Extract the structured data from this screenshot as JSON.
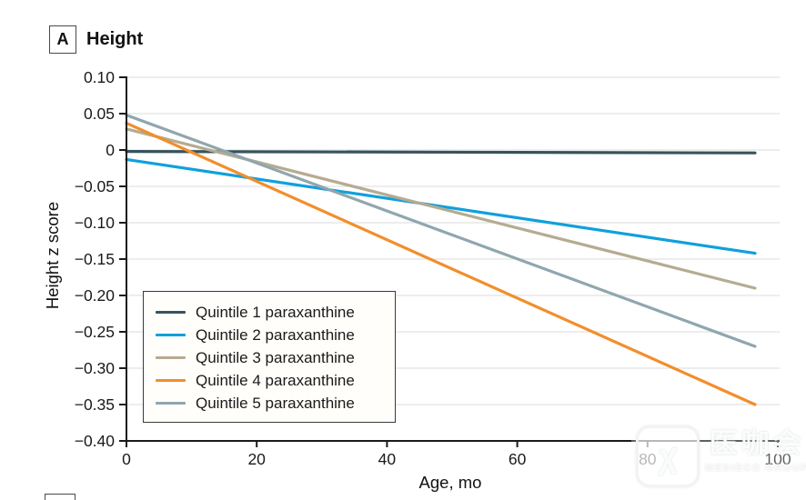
{
  "panel": {
    "label": "A",
    "title": "Height"
  },
  "watermark": {
    "logo_glyph": "χ",
    "brand_cn": "医咖会",
    "brand_en": "MEDIECO GROUP"
  },
  "chart_data": {
    "type": "line",
    "title": "Height",
    "xlabel": "Age, mo",
    "ylabel": "Height z score",
    "xlim": [
      0,
      100
    ],
    "ylim": [
      -0.4,
      0.1
    ],
    "x_ticks": [
      0,
      20,
      40,
      60,
      80,
      100
    ],
    "x_tick_labels": [
      "0",
      "20",
      "40",
      "60",
      "80",
      "100"
    ],
    "y_ticks": [
      0.1,
      0.05,
      0,
      -0.05,
      -0.1,
      -0.15,
      -0.2,
      -0.25,
      -0.3,
      -0.35,
      -0.4
    ],
    "y_tick_labels": [
      "0.10",
      "0.05",
      "0",
      "−0.05",
      "−0.10",
      "−0.15",
      "−0.20",
      "−0.25",
      "−0.30",
      "−0.35",
      "−0.40"
    ],
    "grid": "horizontal",
    "grid_color": "#e2e2e2",
    "axis_color": "#1a1a1a",
    "legend_position": "inside lower-left",
    "series": [
      {
        "name": "Quintile 1 paraxanthine",
        "color": "#36535c",
        "x": [
          0,
          96.5
        ],
        "y": [
          -0.002,
          -0.004
        ]
      },
      {
        "name": "Quintile 2 paraxanthine",
        "color": "#10a0dc",
        "x": [
          0,
          96.5
        ],
        "y": [
          -0.013,
          -0.142
        ]
      },
      {
        "name": "Quintile 3 paraxanthine",
        "color": "#b5ab91",
        "x": [
          0,
          96.5
        ],
        "y": [
          0.029,
          -0.19
        ]
      },
      {
        "name": "Quintile 4 paraxanthine",
        "color": "#f28e2b",
        "x": [
          0,
          96.5
        ],
        "y": [
          0.037,
          -0.35
        ]
      },
      {
        "name": "Quintile 5 paraxanthine",
        "color": "#90a6ae",
        "x": [
          0,
          96.5
        ],
        "y": [
          0.048,
          -0.27
        ]
      }
    ]
  }
}
